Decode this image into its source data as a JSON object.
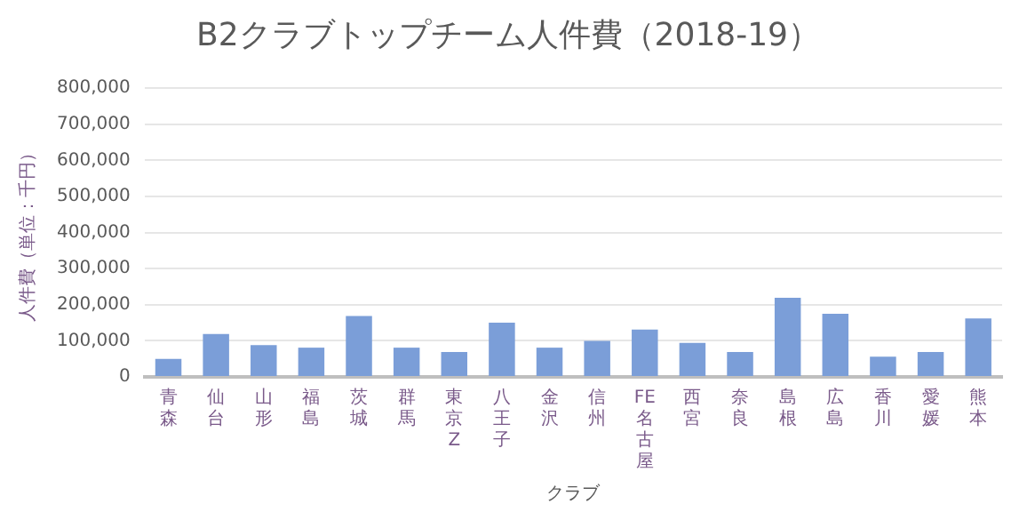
{
  "chart_data": {
    "type": "bar",
    "title": "B2クラブトップチーム人件費（2018-19）",
    "xlabel": "クラブ",
    "ylabel": "人件費（単位：千円）",
    "categories": [
      "青森",
      "仙台",
      "山形",
      "福島",
      "茨城",
      "群馬",
      "東京Z",
      "八王子",
      "金沢",
      "信州",
      "FE名古屋",
      "西宮",
      "奈良",
      "島根",
      "広島",
      "香川",
      "愛媛",
      "熊本"
    ],
    "values": [
      50000,
      119000,
      88000,
      81000,
      169000,
      81000,
      69000,
      150000,
      81000,
      100000,
      131000,
      94000,
      69000,
      219000,
      175000,
      56000,
      69000,
      162000
    ],
    "color": "#7b9ed8",
    "ylim": [
      0,
      800000
    ],
    "yticks": [
      0,
      {
        "value": 100000,
        "label": "100,000"
      },
      {
        "value": 200000,
        "label": "200,000"
      },
      {
        "value": 300000,
        "label": "300,000"
      },
      {
        "value": 400000,
        "label": "400,000"
      },
      {
        "value": 500000,
        "label": "500,000"
      },
      {
        "value": 600000,
        "label": "600,000"
      },
      {
        "value": 700000,
        "label": "700,000"
      },
      {
        "value": 800000,
        "label": "800,000"
      }
    ],
    "grid": "y",
    "legend": false
  }
}
